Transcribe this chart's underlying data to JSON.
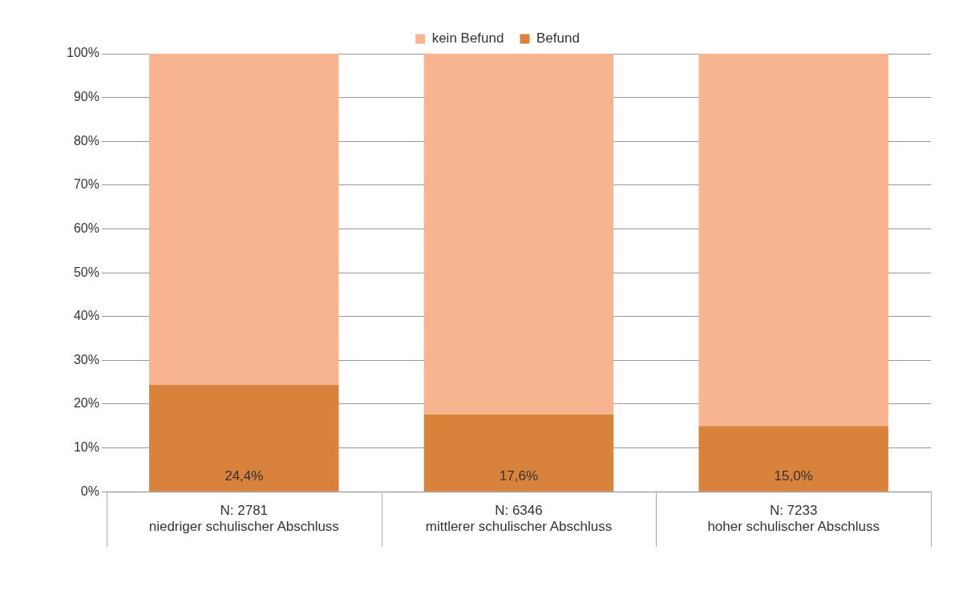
{
  "chart_data": {
    "type": "bar",
    "stacked": true,
    "categories": [
      "N: 2781\nniedriger schulischer Abschluss",
      "N: 6346\nmittlerer schulischer Abschluss",
      "N: 7233\nhoher schulischer Abschluss"
    ],
    "series": [
      {
        "name": "Befund",
        "color": "#d9823b",
        "values": [
          24.4,
          17.6,
          15.0
        ],
        "value_labels": [
          "24,4%",
          "17,6%",
          "15,0%"
        ]
      },
      {
        "name": "kein Befund",
        "color": "#f7b48f",
        "values": [
          75.6,
          82.4,
          85.0
        ]
      }
    ],
    "ylim": [
      0,
      100
    ],
    "yticks": [
      {
        "value": 0,
        "label": "0%"
      },
      {
        "value": 10,
        "label": "10%"
      },
      {
        "value": 20,
        "label": "20%"
      },
      {
        "value": 30,
        "label": "30%"
      },
      {
        "value": 40,
        "label": "40%"
      },
      {
        "value": 50,
        "label": "50%"
      },
      {
        "value": 60,
        "label": "60%"
      },
      {
        "value": 70,
        "label": "70%"
      },
      {
        "value": 80,
        "label": "80%"
      },
      {
        "value": 90,
        "label": "90%"
      },
      {
        "value": 100,
        "label": "100%"
      }
    ],
    "grid": "y",
    "legend": "top"
  }
}
